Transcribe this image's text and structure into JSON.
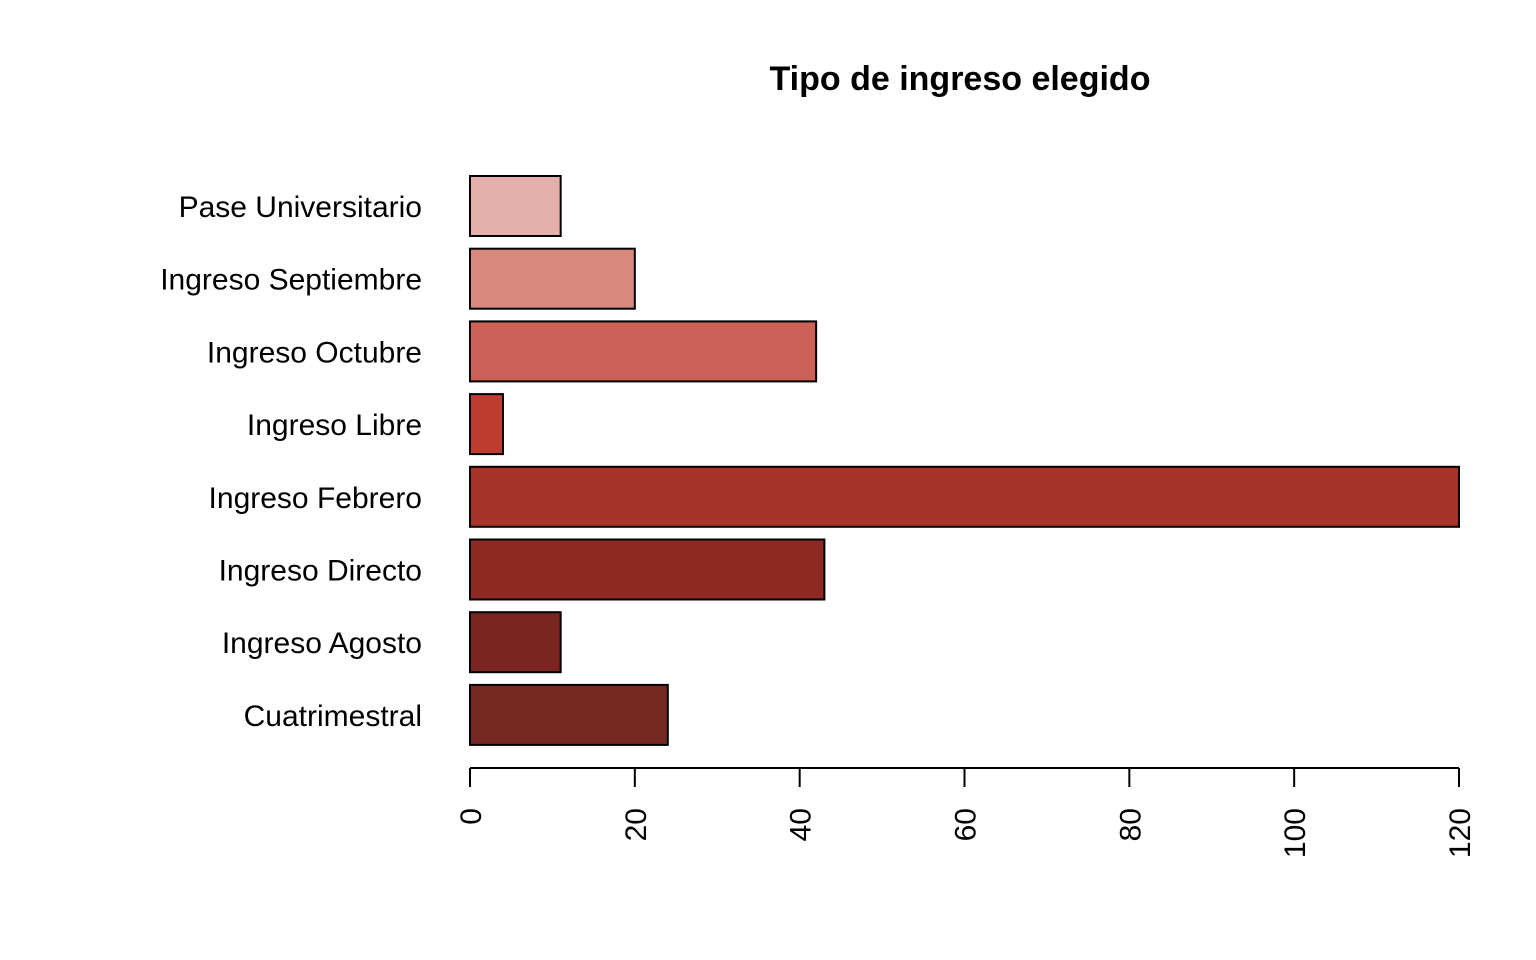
{
  "chart_data": {
    "type": "bar",
    "orientation": "horizontal",
    "title": "Tipo de ingreso elegido",
    "xlabel": "",
    "ylabel": "",
    "categories": [
      "Pase Universitario",
      "Ingreso Septiembre",
      "Ingreso Octubre",
      "Ingreso Libre",
      "Ingreso Febrero",
      "Ingreso Directo",
      "Ingreso Agosto",
      "Cuatrimestral"
    ],
    "values": [
      11,
      20,
      42,
      4,
      120,
      43,
      11,
      24
    ],
    "colors": [
      "#e5b0ac",
      "#d8887f",
      "#cc6158",
      "#be3b30",
      "#a83329",
      "#8e2a23",
      "#7b2520",
      "#772822"
    ],
    "xlim": [
      0,
      120
    ],
    "ticks": [
      0,
      20,
      40,
      60,
      80,
      100,
      120
    ],
    "tick_labels": [
      "0",
      "20",
      "40",
      "60",
      "80",
      "100",
      "120"
    ],
    "grid": false,
    "legend": "none"
  }
}
